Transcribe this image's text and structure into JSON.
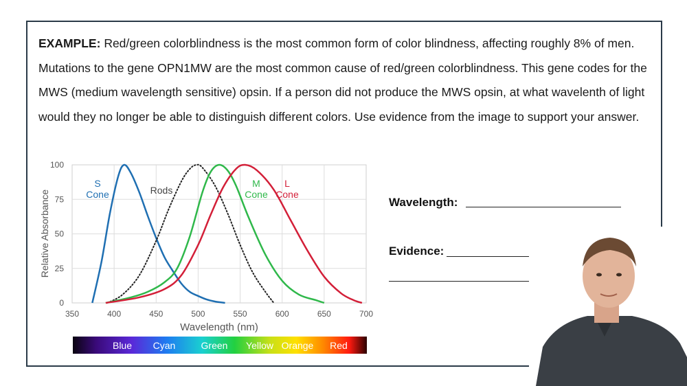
{
  "question": {
    "label": "EXAMPLE:",
    "text": "Red/green colorblindness is the most common form of color blindness, affecting roughly 8% of men. Mutations to the gene OPN1MW are the most common cause of red/green colorblindness. This gene codes for the MWS (medium wavelength sensitive) opsin. If a person did not produce the MWS opsin, at what wavelenth of light would they no longer be able to distinguish different colors. Use evidence from the image to support your answer."
  },
  "answer_fields": {
    "wavelength_label": "Wavelength:",
    "evidence_label": "Evidence:"
  },
  "chart_data": {
    "type": "line",
    "xlabel": "Wavelength (nm)",
    "ylabel": "Relative Absorbance",
    "xlim": [
      350,
      700
    ],
    "ylim": [
      0,
      100
    ],
    "xticks": [
      "350",
      "400",
      "450",
      "500",
      "550",
      "600",
      "650",
      "700"
    ],
    "yticks": [
      "0",
      "25",
      "50",
      "75",
      "100"
    ],
    "series": [
      {
        "name": "S Cone",
        "label_lines": [
          "S",
          "Cone"
        ],
        "color": "#1f6fb2",
        "dashed": false,
        "x": [
          374,
          385,
          395,
          405,
          412,
          420,
          430,
          440,
          450,
          460,
          470,
          480,
          490,
          500,
          510,
          520,
          532
        ],
        "y": [
          0,
          30,
          65,
          92,
          100,
          94,
          80,
          63,
          47,
          33,
          23,
          14,
          8,
          5,
          2.5,
          1,
          0
        ]
      },
      {
        "name": "Rods",
        "label_lines": [
          "Rods"
        ],
        "color": "#222222",
        "dashed": true,
        "x": [
          392,
          410,
          430,
          450,
          465,
          480,
          490,
          498,
          505,
          520,
          535,
          550,
          565,
          580,
          590
        ],
        "y": [
          0,
          6,
          20,
          45,
          68,
          88,
          97,
          100,
          98,
          85,
          65,
          42,
          22,
          8,
          0
        ]
      },
      {
        "name": "M Cone",
        "label_lines": [
          "M",
          "Cone"
        ],
        "color": "#2fb84a",
        "dashed": false,
        "x": [
          390,
          420,
          440,
          460,
          475,
          490,
          505,
          515,
          525,
          535,
          545,
          560,
          580,
          600,
          620,
          640,
          650
        ],
        "y": [
          0,
          4,
          8,
          15,
          25,
          48,
          80,
          95,
          100,
          96,
          85,
          62,
          35,
          16,
          6,
          2,
          0
        ]
      },
      {
        "name": "L Cone",
        "label_lines": [
          "L",
          "Cone"
        ],
        "color": "#d31f38",
        "dashed": false,
        "x": [
          390,
          430,
          460,
          480,
          500,
          515,
          530,
          545,
          556,
          570,
          590,
          610,
          630,
          650,
          670,
          685,
          695
        ],
        "y": [
          0,
          4,
          10,
          20,
          42,
          64,
          84,
          97,
          100,
          96,
          82,
          60,
          38,
          19,
          7,
          2,
          0
        ]
      }
    ],
    "color_bar": [
      "Blue",
      "Cyan",
      "Green",
      "Yellow",
      "Orange",
      "Red"
    ]
  }
}
